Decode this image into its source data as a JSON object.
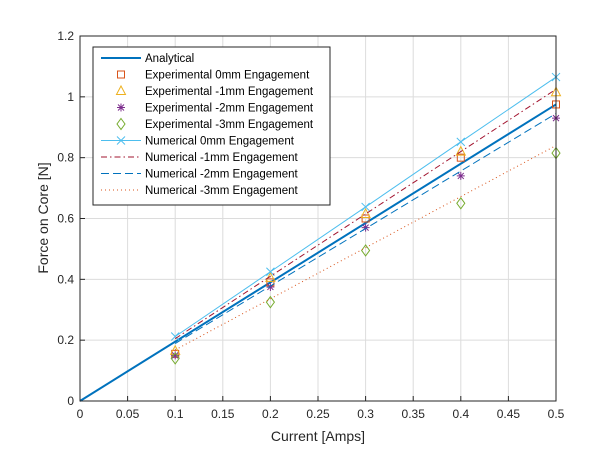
{
  "chart_data": {
    "type": "line",
    "title": "",
    "xlabel": "Current [Amps]",
    "ylabel": "Force on Core [N]",
    "xlim": [
      0,
      0.5
    ],
    "ylim": [
      0,
      1.2
    ],
    "xticks": [
      "0",
      "0.05",
      "0.1",
      "0.15",
      "0.2",
      "0.25",
      "0.3",
      "0.35",
      "0.4",
      "0.45",
      "0.5"
    ],
    "yticks": [
      "0",
      "0.2",
      "0.4",
      "0.6",
      "0.8",
      "1",
      "1.2"
    ],
    "grid": true,
    "legend_position": "top-left",
    "series": [
      {
        "name": "Analytical",
        "style": "solid",
        "marker": "none",
        "color": "#0072BD",
        "x": [
          0,
          0.5
        ],
        "y": [
          0,
          0.975
        ]
      },
      {
        "name": "Experimental  0mm Engagement",
        "style": "none",
        "marker": "square",
        "color": "#D95319",
        "x": [
          0.1,
          0.2,
          0.3,
          0.4,
          0.5
        ],
        "y": [
          0.155,
          0.39,
          0.6,
          0.8,
          0.975
        ]
      },
      {
        "name": "Experimental -1mm Engagement",
        "style": "none",
        "marker": "triangle",
        "color": "#EDB120",
        "x": [
          0.1,
          0.2,
          0.3,
          0.4,
          0.5
        ],
        "y": [
          0.165,
          0.405,
          0.615,
          0.82,
          1.015
        ]
      },
      {
        "name": "Experimental -2mm Engagement",
        "style": "none",
        "marker": "star",
        "color": "#7E2F8E",
        "x": [
          0.1,
          0.2,
          0.3,
          0.4,
          0.5
        ],
        "y": [
          0.15,
          0.375,
          0.57,
          0.74,
          0.93
        ]
      },
      {
        "name": "Experimental -3mm Engagement",
        "style": "none",
        "marker": "diamond",
        "color": "#77AC30",
        "x": [
          0.1,
          0.2,
          0.3,
          0.4,
          0.5
        ],
        "y": [
          0.14,
          0.325,
          0.495,
          0.65,
          0.815
        ]
      },
      {
        "name": "Numerical  0mm Engagement",
        "style": "solid-thin",
        "marker": "x",
        "color": "#4DBEEE",
        "x": [
          0.1,
          0.2,
          0.3,
          0.4,
          0.5
        ],
        "y": [
          0.212,
          0.425,
          0.638,
          0.852,
          1.065
        ]
      },
      {
        "name": "Numerical -1mm Engagement",
        "style": "dashdot",
        "marker": "none",
        "color": "#A2142F",
        "x": [
          0.1,
          0.2,
          0.3,
          0.4,
          0.5
        ],
        "y": [
          0.205,
          0.41,
          0.615,
          0.82,
          1.025
        ]
      },
      {
        "name": "Numerical -2mm Engagement",
        "style": "dashed",
        "marker": "none",
        "color": "#0072BD",
        "x": [
          0.1,
          0.2,
          0.3,
          0.4,
          0.5
        ],
        "y": [
          0.189,
          0.378,
          0.567,
          0.756,
          0.945
        ]
      },
      {
        "name": "Numerical -3mm Engagement",
        "style": "dotted",
        "marker": "none",
        "color": "#D95319",
        "x": [
          0.1,
          0.2,
          0.3,
          0.4,
          0.5
        ],
        "y": [
          0.168,
          0.336,
          0.504,
          0.672,
          0.84
        ]
      }
    ]
  }
}
